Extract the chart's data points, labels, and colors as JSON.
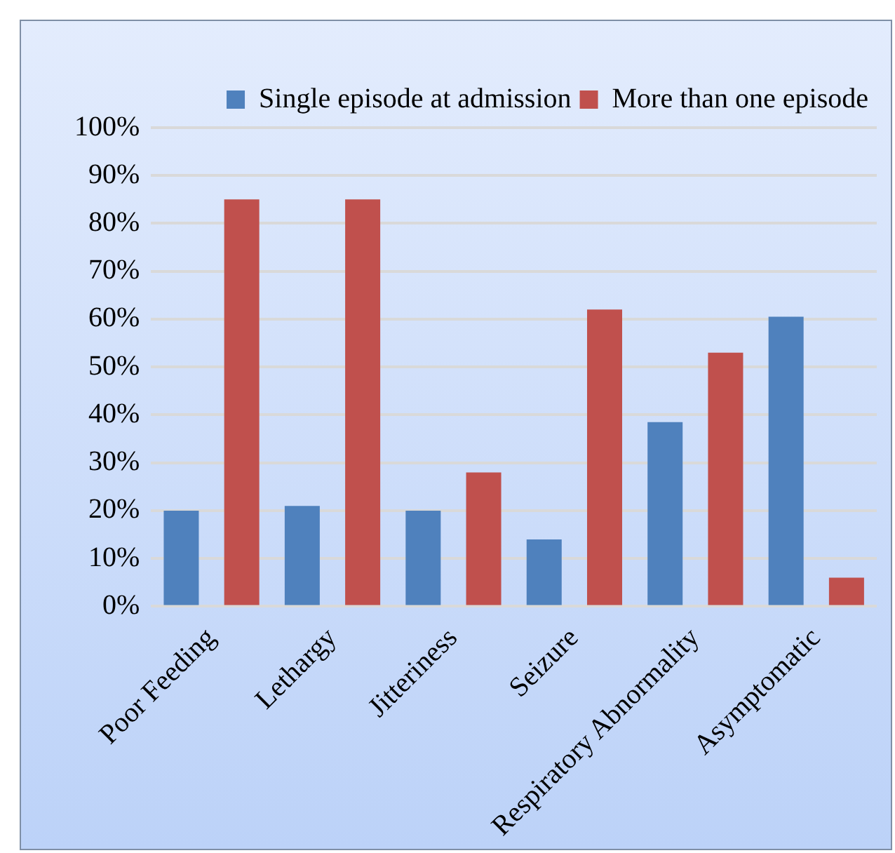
{
  "chart_data": {
    "type": "bar",
    "categories": [
      "Poor Feeding",
      "Lethargy",
      "Jitteriness",
      "Seizure",
      "Respiratory Abnormality",
      "Asymptomatic"
    ],
    "series": [
      {
        "name": "Single episode at admission",
        "color": "#4f81bd",
        "values": [
          20,
          21,
          20,
          14,
          38.5,
          60.5
        ]
      },
      {
        "name": "More than one episode",
        "color": "#c0504d",
        "values": [
          85,
          85,
          28,
          62,
          53,
          6
        ]
      }
    ],
    "ylim": [
      0,
      100
    ],
    "yticks": [
      {
        "value": 0,
        "label": "0%"
      },
      {
        "value": 10,
        "label": "10%"
      },
      {
        "value": 20,
        "label": "20%"
      },
      {
        "value": 30,
        "label": "30%"
      },
      {
        "value": 40,
        "label": "40%"
      },
      {
        "value": 50,
        "label": "50%"
      },
      {
        "value": 60,
        "label": "60%"
      },
      {
        "value": 70,
        "label": "70%"
      },
      {
        "value": 80,
        "label": "80%"
      },
      {
        "value": 90,
        "label": "90%"
      },
      {
        "value": 100,
        "label": "100%"
      }
    ],
    "grid": "y",
    "legend": "top"
  }
}
